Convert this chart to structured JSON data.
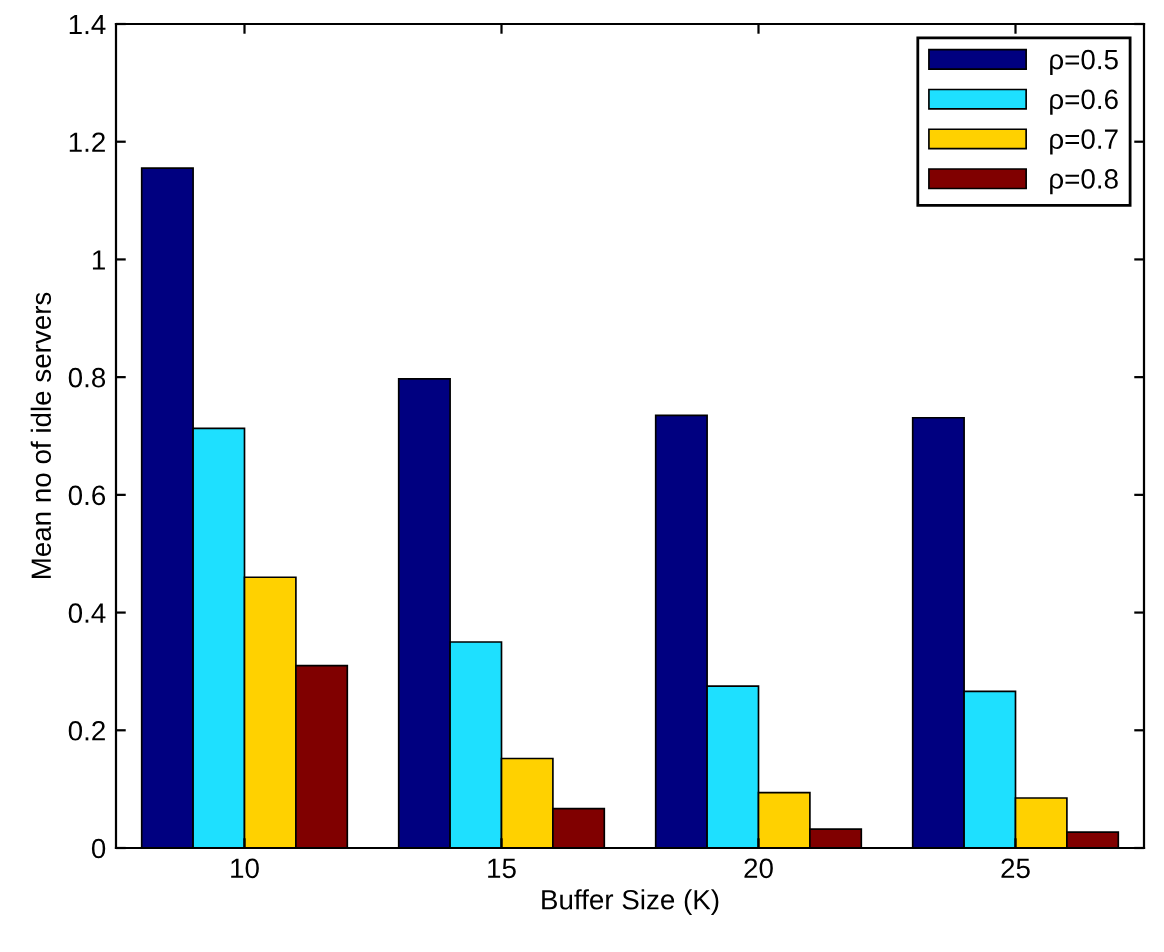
{
  "chart_data": {
    "type": "bar",
    "xlabel": "Buffer Size (K)",
    "ylabel": "Mean no of idle servers",
    "categories": [
      "10",
      "15",
      "20",
      "25"
    ],
    "series": [
      {
        "name": "ρ=0.5",
        "color": "#000080",
        "values": [
          1.155,
          0.797,
          0.735,
          0.731
        ]
      },
      {
        "name": "ρ=0.6",
        "color": "#1ee0ff",
        "values": [
          0.713,
          0.35,
          0.275,
          0.266
        ]
      },
      {
        "name": "ρ=0.7",
        "color": "#ffd100",
        "values": [
          0.46,
          0.152,
          0.094,
          0.085
        ]
      },
      {
        "name": "ρ=0.8",
        "color": "#800000",
        "values": [
          0.31,
          0.067,
          0.032,
          0.027
        ]
      }
    ],
    "ylim": [
      0,
      1.4
    ],
    "yticks": [
      0,
      0.2,
      0.4,
      0.6,
      0.8,
      1,
      1.2,
      1.4
    ],
    "grid": false,
    "legend": "top right"
  }
}
